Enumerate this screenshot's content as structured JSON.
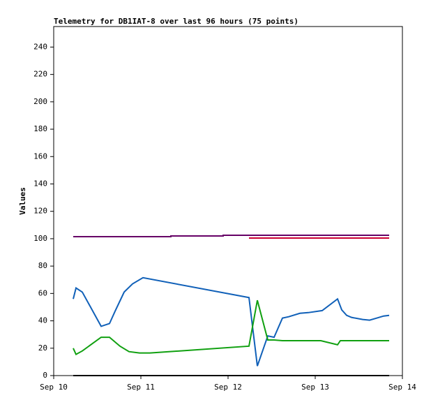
{
  "chart_data": {
    "type": "line",
    "title": "Telemetry for DB1IAT-8 over last 96 hours (75 points)",
    "y_label": "Values",
    "xlim": [
      10,
      14
    ],
    "xticks": [
      {
        "value": 10,
        "label": "Sep 10"
      },
      {
        "value": 11,
        "label": "Sep 11"
      },
      {
        "value": 12,
        "label": "Sep 12"
      },
      {
        "value": 13,
        "label": "Sep 13"
      },
      {
        "value": 14,
        "label": "Sep 14"
      }
    ],
    "ylim": [
      0,
      255
    ],
    "yticks": [
      0,
      20,
      40,
      60,
      80,
      100,
      120,
      140,
      160,
      180,
      200,
      220,
      240
    ],
    "series": [
      {
        "color": "#660066",
        "x": [
          10.224,
          11.344,
          11.344,
          11.944,
          11.944,
          13.848
        ],
        "values": [
          101.5,
          101.5,
          102,
          102,
          102.5,
          102.5
        ]
      },
      {
        "color": "#cc0033",
        "x": [
          12.24,
          13.848
        ],
        "values": [
          100.5,
          100.5
        ]
      },
      {
        "color": "#1060b8",
        "x": [
          10.224,
          10.256,
          10.328,
          10.544,
          10.64,
          10.704,
          10.808,
          10.904,
          11.024,
          12.24,
          12.336,
          12.456,
          12.528,
          12.624,
          12.696,
          12.824,
          12.92,
          13.08,
          13.256,
          13.304,
          13.36,
          13.416,
          13.544,
          13.624,
          13.704,
          13.784,
          13.848
        ],
        "values": [
          56,
          64,
          61,
          36,
          38,
          47,
          61,
          67,
          71.5,
          57,
          7,
          29,
          28,
          42,
          43,
          45.5,
          46,
          47.5,
          56,
          48,
          44,
          42.5,
          41,
          40.5,
          42,
          43.5,
          44
        ]
      },
      {
        "color": "#10a010",
        "x": [
          10.224,
          10.256,
          10.328,
          10.544,
          10.64,
          10.76,
          10.864,
          10.984,
          11.104,
          12.24,
          12.336,
          12.456,
          12.528,
          12.624,
          13.064,
          13.256,
          13.288,
          13.848
        ],
        "values": [
          20,
          15.5,
          18,
          28,
          28,
          21.5,
          17.5,
          16.5,
          16.5,
          21.5,
          55,
          26,
          26,
          25.5,
          25.5,
          22.5,
          25.5,
          25.5
        ]
      },
      {
        "color": "#000000",
        "x": [
          10.224,
          13.848
        ],
        "values": [
          0,
          0
        ]
      }
    ]
  }
}
